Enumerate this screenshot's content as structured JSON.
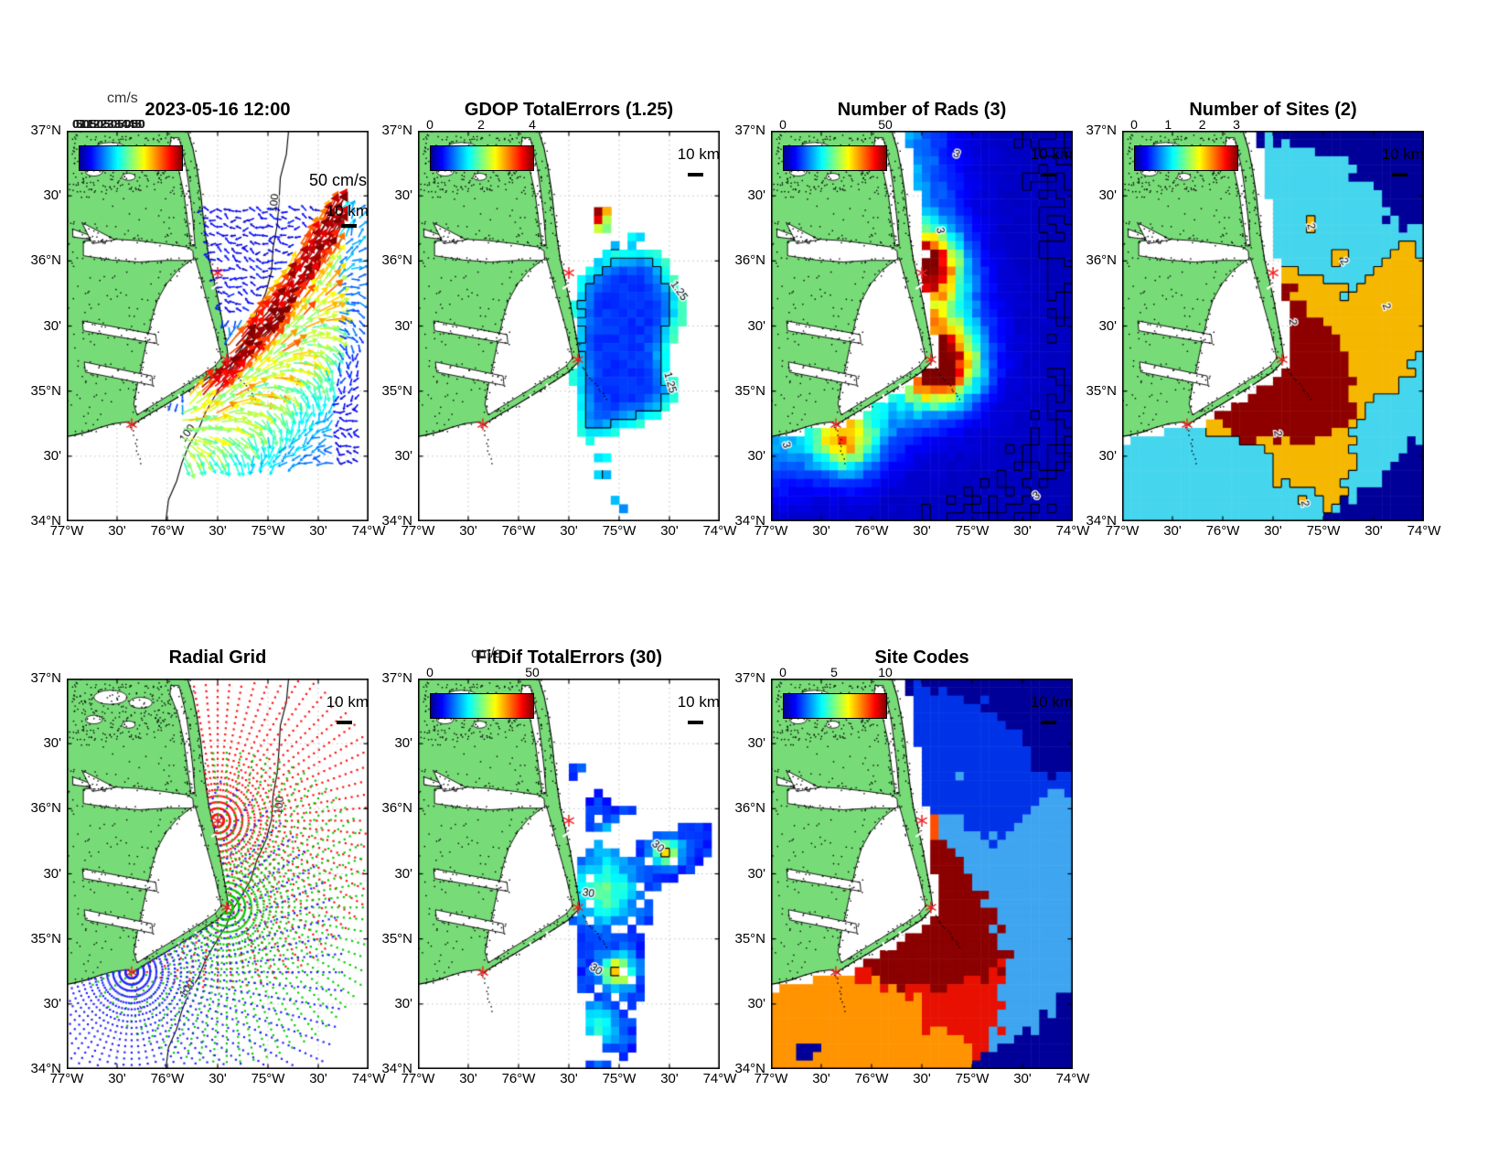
{
  "figure": {
    "description": "Seven-panel HF radar surface-current diagnostic maps off Cape Hatteras, North Carolina",
    "land_color": "#77DC77",
    "map_extent": {
      "west": "77°W",
      "east": "74°W",
      "north": "37°N",
      "south": "34°N"
    }
  },
  "axes": {
    "x_tick_labels": [
      "77°W",
      "30'",
      "76°W",
      "30'",
      "75°W",
      "30'",
      "74°W"
    ],
    "y_tick_labels": [
      "37°N",
      "30'",
      "36°N",
      "30'",
      "35°N",
      "30'",
      "34°N"
    ]
  },
  "radar_sites": [
    {
      "marker": "red-asterisk",
      "approx_lat": 35.91,
      "approx_lon": "75.50°W"
    },
    {
      "marker": "red-asterisk",
      "approx_lat": 35.24,
      "approx_lon": "75.41°W"
    },
    {
      "marker": "red-asterisk",
      "approx_lat": 34.74,
      "approx_lon": "76.36°W"
    }
  ],
  "chart_data": [
    {
      "type": "map_quiver",
      "title": "2023-05-16 12:00",
      "units_label": "cm/s",
      "vector_scale_label": "50 cm/s",
      "map_scale_label": "10 km",
      "colorbar": {
        "colormap": "jet",
        "min": 0,
        "max": 50,
        "tick_labels_overlapping": "0 5 10 15 20 25 30 35 40 45 50"
      },
      "isobath_contour_label": "100",
      "features": "Dark-red NE-flowing Gulf Stream jet offshore of Cape Hatteras, weak blue vectors north of it, yellow-green-cyan fan of vectors to the south"
    },
    {
      "type": "map_pcolor",
      "title": "GDOP TotalErrors (1.25)",
      "map_scale_label": "10 km",
      "colorbar": {
        "colormap": "jet",
        "min": 0,
        "max": 4,
        "ticks": [
          "0",
          "2",
          "4"
        ]
      },
      "contour_level_label": "1.25",
      "features": "Deep-blue GDOP error patch offshore with cyan/yellow fringe and a small dark-red cluster to the northwest"
    },
    {
      "type": "map_pcolor",
      "title": "Number of Rads (3)",
      "map_scale_label": "10 km",
      "colorbar": {
        "colormap": "jet",
        "min": 0,
        "max": 50,
        "ticks": [
          "0",
          "50"
        ]
      },
      "contour_level_label": "3",
      "features": "Blue field over entire ocean with red/orange radial-count hotspots at the two northern radar sites and a weaker yellow spot at the southern site"
    },
    {
      "type": "map_discrete",
      "title": "Number of Sites (2)",
      "map_scale_label": "10 km",
      "colorbar": {
        "colormap": "jet",
        "min": 0,
        "max": 3,
        "ticks": [
          "0",
          "1",
          "2",
          "3"
        ]
      },
      "contour_level_label": "2",
      "region_colors": {
        "0_sites": "#000099",
        "1_site": "#45D6EE",
        "2_sites": "#F5B700",
        "3_sites": "#8E0000"
      }
    },
    {
      "type": "map_points",
      "title": "Radial Grid",
      "map_scale_label": "10 km",
      "isobath_contour_label": "100",
      "grid_point_colors": [
        "#FF0000",
        "#00CC00",
        "#2222FF"
      ],
      "features": "Concentric polar radial measurement grids (red, green, blue) centered on the three radar sites"
    },
    {
      "type": "map_pcolor",
      "title": "FitDif TotalErrors (30)",
      "units_label": "cm/s",
      "map_scale_label": "10 km",
      "colorbar": {
        "colormap": "jet",
        "min": 0,
        "max": 50,
        "ticks": [
          "0",
          "50"
        ]
      },
      "contour_level_label": "30",
      "features": "Blue misfit field offshore with yellow/orange hotspots ringed by 30 cm/s contours"
    },
    {
      "type": "map_discrete",
      "title": "Site Codes",
      "map_scale_label": "10 km",
      "colorbar": {
        "colormap": "jet",
        "min": 0,
        "max": 10,
        "ticks": [
          "0",
          "5",
          "10"
        ]
      },
      "region_colors": [
        "#000099",
        "#0033E8",
        "#3FA5F0",
        "#8B0000",
        "#E81000",
        "#FF4D00",
        "#FF9400"
      ]
    }
  ]
}
